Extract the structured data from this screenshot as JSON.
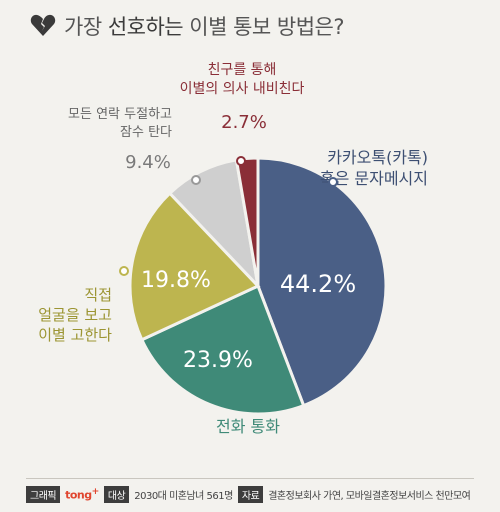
{
  "title": {
    "prefix": "가장 ",
    "highlight": "선호하는",
    "suffix": " 이별 통보 방법은?"
  },
  "chart_data": {
    "type": "pie",
    "title": "가장 선호하는 이별 통보 방법은?",
    "unit": "%",
    "slices": [
      {
        "label_lines": [
          "카카오톡(카톡)",
          "혹은 문자메시지"
        ],
        "value": 44.2,
        "value_text": "44.2%",
        "color": "#4a5f86"
      },
      {
        "label_lines": [
          "전화 통화"
        ],
        "value": 23.9,
        "value_text": "23.9%",
        "color": "#3f8a78"
      },
      {
        "label_lines": [
          "직접",
          "얼굴을 보고",
          "이별 고한다"
        ],
        "value": 19.8,
        "value_text": "19.8%",
        "color": "#bdb54f"
      },
      {
        "label_lines": [
          "모든 연락 두절하고",
          "잠수 탄다"
        ],
        "value": 9.4,
        "value_text": "9.4%",
        "color": "#cfcfcf"
      },
      {
        "label_lines": [
          "친구를 통해",
          "이별의 의사 내비친다"
        ],
        "value": 2.7,
        "value_text": "2.7%",
        "color": "#8a2e37"
      }
    ]
  },
  "footer": {
    "graphic_tag": "그래픽",
    "brand": "tong",
    "brand_mark": "+",
    "target_tag": "대상",
    "target_text": "2030대 미혼남녀 561명",
    "source_tag": "자료",
    "source_text": "결혼정보회사 가연, 모바일결혼정보서비스 천만모여"
  },
  "colors": {
    "background": "#f3f2ee",
    "icon": "#3a3a3a",
    "brand": "#e0462f"
  },
  "icons": {
    "title_icon": "broken-heart-icon"
  }
}
